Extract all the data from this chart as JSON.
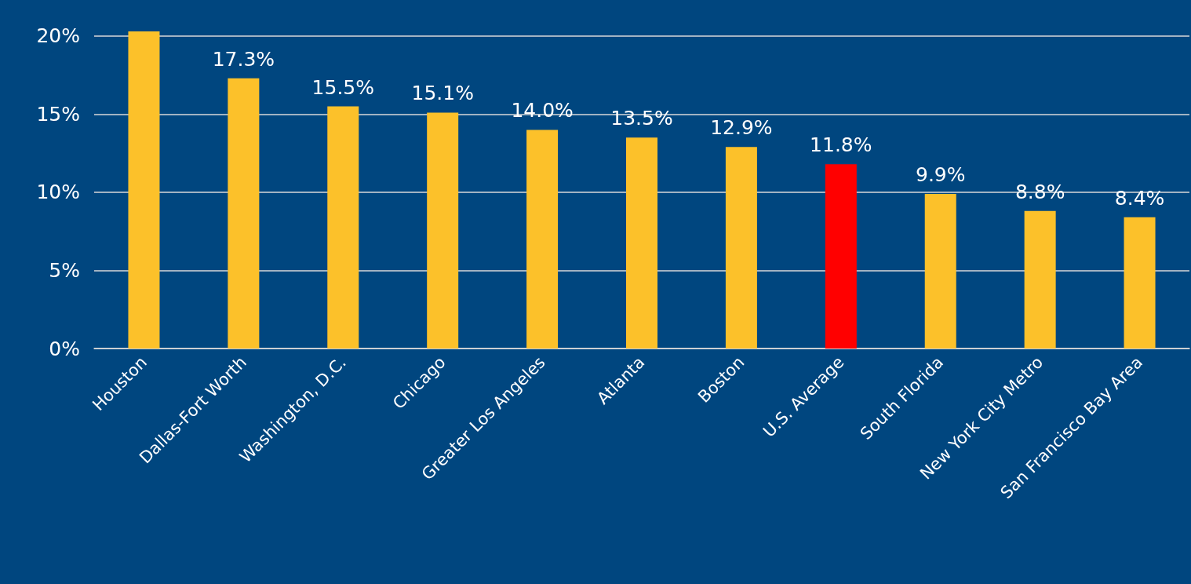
{
  "chart_data": {
    "type": "bar",
    "categories": [
      "Houston",
      "Dallas-Fort Worth",
      "Washington, D.C.",
      "Chicago",
      "Greater Los Angeles",
      "Atlanta",
      "Boston",
      "U.S. Average",
      "South Florida",
      "New York City Metro",
      "San Francisco Bay Area"
    ],
    "values": [
      20.3,
      17.3,
      15.5,
      15.1,
      14.0,
      13.5,
      12.9,
      11.8,
      9.9,
      8.8,
      8.4
    ],
    "value_labels": [
      null,
      "17.3%",
      "15.5%",
      "15.1%",
      "14.0%",
      "13.5%",
      "12.9%",
      "11.8%",
      "9.9%",
      "8.8%",
      "8.4%"
    ],
    "colors": [
      "#fcc12a",
      "#fcc12a",
      "#fcc12a",
      "#fcc12a",
      "#fcc12a",
      "#fcc12a",
      "#fcc12a",
      "#ff0000",
      "#fcc12a",
      "#fcc12a",
      "#fcc12a"
    ],
    "ylim": [
      0,
      20.3
    ],
    "yticks": [
      {
        "value": 0,
        "label": "0%"
      },
      {
        "value": 5,
        "label": "5%"
      },
      {
        "value": 10,
        "label": "10%"
      },
      {
        "value": 15,
        "label": "15%"
      },
      {
        "value": 20,
        "label": "20%"
      }
    ],
    "grid": "y"
  }
}
